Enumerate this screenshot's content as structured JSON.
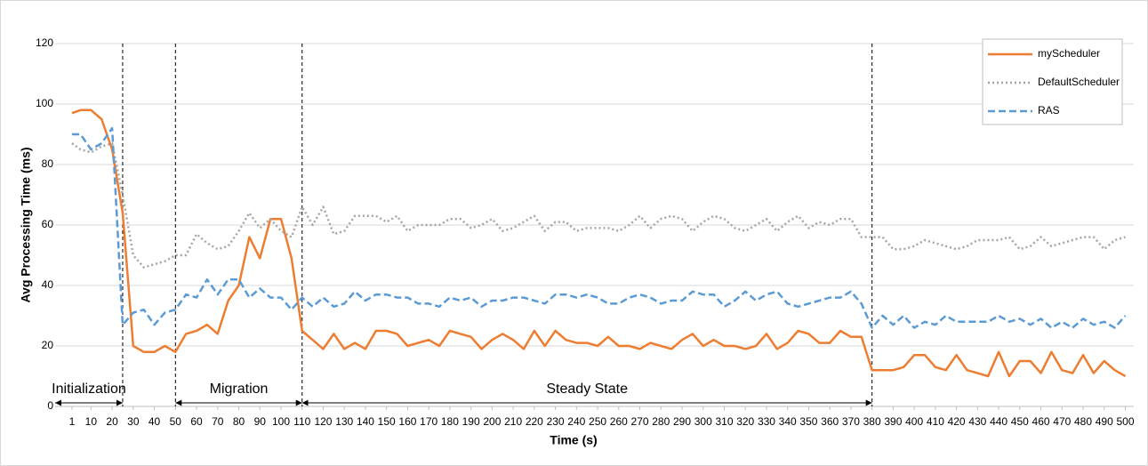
{
  "chart_data": {
    "type": "line",
    "x_label": "Time (s)",
    "y_label": "Avg Processing Time (ms)",
    "x": [
      1,
      5,
      10,
      15,
      20,
      25,
      30,
      35,
      40,
      45,
      50,
      55,
      60,
      65,
      70,
      75,
      80,
      85,
      90,
      95,
      100,
      105,
      110,
      115,
      120,
      125,
      130,
      135,
      140,
      145,
      150,
      155,
      160,
      165,
      170,
      175,
      180,
      185,
      190,
      195,
      200,
      205,
      210,
      215,
      220,
      225,
      230,
      235,
      240,
      245,
      250,
      255,
      260,
      265,
      270,
      275,
      280,
      285,
      290,
      295,
      300,
      305,
      310,
      315,
      320,
      325,
      330,
      335,
      340,
      345,
      350,
      355,
      360,
      365,
      370,
      375,
      380,
      385,
      390,
      395,
      400,
      405,
      410,
      415,
      420,
      425,
      430,
      435,
      440,
      445,
      450,
      455,
      460,
      465,
      470,
      475,
      480,
      485,
      490,
      495,
      500
    ],
    "series": [
      {
        "name": "myScheduler",
        "color": "#ED7D31",
        "dash": "solid",
        "values": [
          97,
          98,
          98,
          95,
          85,
          64,
          20,
          18,
          18,
          20,
          18,
          24,
          25,
          27,
          24,
          35,
          40,
          56,
          49,
          62,
          62,
          49,
          25,
          22,
          19,
          24,
          19,
          21,
          19,
          25,
          25,
          24,
          20,
          21,
          22,
          20,
          25,
          24,
          23,
          19,
          22,
          24,
          22,
          19,
          25,
          20,
          25,
          22,
          21,
          21,
          20,
          23,
          20,
          20,
          19,
          21,
          20,
          19,
          22,
          24,
          20,
          22,
          20,
          20,
          19,
          20,
          24,
          19,
          21,
          25,
          24,
          21,
          21,
          25,
          23,
          23,
          12,
          12,
          12,
          13,
          17,
          17,
          13,
          12,
          17,
          12,
          11,
          10,
          18,
          10,
          15,
          15,
          11,
          18,
          12,
          11,
          17,
          11,
          15,
          12,
          10
        ]
      },
      {
        "name": "DefaultScheduler",
        "color": "#A5A5A5",
        "dash": "dotted",
        "values": [
          87,
          85,
          84,
          86,
          87,
          70,
          50,
          46,
          47,
          48,
          50,
          50,
          57,
          54,
          52,
          53,
          58,
          64,
          59,
          62,
          58,
          56,
          66,
          60,
          66,
          57,
          58,
          63,
          63,
          63,
          61,
          63,
          58,
          60,
          60,
          60,
          62,
          62,
          59,
          60,
          62,
          58,
          59,
          61,
          63,
          58,
          61,
          61,
          58,
          59,
          59,
          59,
          58,
          60,
          63,
          59,
          62,
          63,
          62,
          58,
          61,
          63,
          62,
          59,
          58,
          60,
          62,
          58,
          61,
          63,
          59,
          61,
          60,
          62,
          62,
          56,
          56,
          56,
          52,
          52,
          53,
          55,
          54,
          53,
          52,
          53,
          55,
          55,
          55,
          56,
          52,
          53,
          56,
          53,
          54,
          55,
          56,
          56,
          52,
          55,
          56
        ]
      },
      {
        "name": "RAS",
        "color": "#5B9BD5",
        "dash": "dashed",
        "values": [
          90,
          90,
          85,
          87,
          92,
          27,
          31,
          32,
          27,
          31,
          32,
          37,
          36,
          42,
          37,
          42,
          42,
          36,
          39,
          36,
          36,
          32,
          36,
          33,
          36,
          33,
          34,
          38,
          35,
          37,
          37,
          36,
          36,
          34,
          34,
          33,
          36,
          35,
          36,
          33,
          35,
          35,
          36,
          36,
          35,
          34,
          37,
          37,
          36,
          37,
          36,
          34,
          34,
          36,
          37,
          36,
          34,
          35,
          35,
          38,
          37,
          37,
          33,
          35,
          38,
          35,
          37,
          38,
          34,
          33,
          34,
          35,
          36,
          36,
          38,
          34,
          26,
          30,
          27,
          30,
          26,
          28,
          27,
          30,
          28,
          28,
          28,
          28,
          30,
          28,
          29,
          27,
          29,
          26,
          28,
          26,
          29,
          27,
          28,
          26,
          30
        ]
      }
    ],
    "xlim": [
      -7,
      504
    ],
    "xticks": [
      1,
      10,
      20,
      30,
      40,
      50,
      60,
      70,
      80,
      90,
      100,
      110,
      120,
      130,
      140,
      150,
      160,
      170,
      180,
      190,
      200,
      210,
      220,
      230,
      240,
      250,
      260,
      270,
      280,
      290,
      300,
      310,
      320,
      330,
      340,
      350,
      360,
      370,
      380,
      390,
      400,
      410,
      420,
      430,
      440,
      450,
      460,
      470,
      480,
      490,
      500
    ],
    "ylim": [
      0,
      120
    ],
    "yticks": [
      0,
      20,
      40,
      60,
      80,
      100,
      120
    ],
    "grid": true,
    "legend": "top-right",
    "phase_lines": [
      25,
      50,
      110,
      380
    ],
    "phases": [
      {
        "label": "Initialization",
        "start": -7,
        "end": 25
      },
      {
        "label": "Migration",
        "start": 50,
        "end": 110
      },
      {
        "label": "Steady State",
        "start": 110,
        "end": 380
      }
    ]
  }
}
